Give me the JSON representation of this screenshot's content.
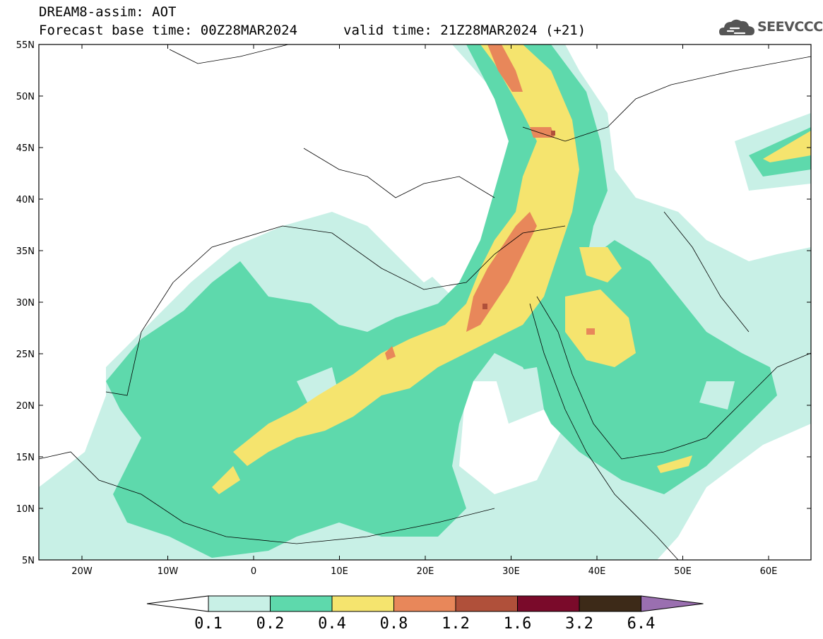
{
  "header": {
    "title": "DREAM8-assim: AOT",
    "base_time": "Forecast base time: 00Z28MAR2024",
    "valid_time": "valid time: 21Z28MAR2024 (+21)"
  },
  "logo": {
    "text": "SEEVCCC",
    "icon": "cloud-icon"
  },
  "map": {
    "lat_labels": [
      "55N",
      "50N",
      "45N",
      "40N",
      "35N",
      "30N",
      "25N",
      "20N",
      "15N",
      "10N",
      "5N"
    ],
    "lon_labels": [
      "20W",
      "10W",
      "0",
      "10E",
      "20E",
      "30E",
      "40E",
      "50E",
      "60E"
    ]
  },
  "colorbar": {
    "labels": [
      "0.1",
      "0.2",
      "0.4",
      "0.8",
      "1.2",
      "1.6",
      "3.2",
      "6.4"
    ],
    "colors": [
      "#ffffff",
      "#c8f0e6",
      "#5ed9ac",
      "#f5e46e",
      "#e8875a",
      "#b0503a",
      "#7a0a2a",
      "#3d2a18",
      "#9a6fb0"
    ]
  }
}
